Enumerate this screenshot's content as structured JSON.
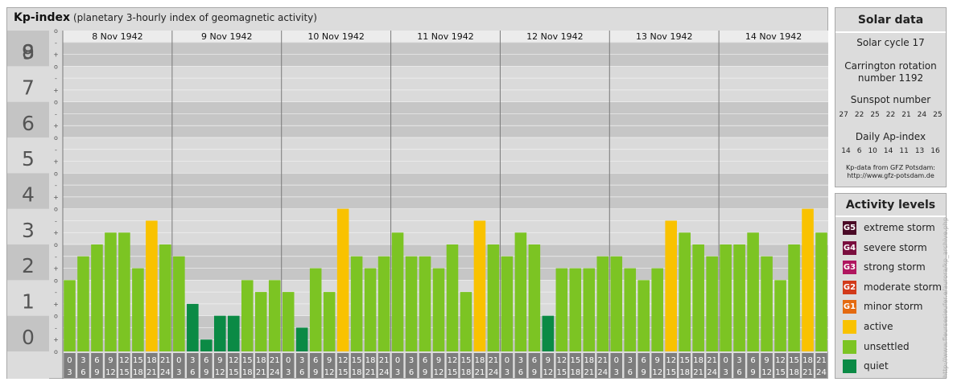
{
  "header": {
    "title": "Kp-index",
    "subtitle": "(planetary 3-hourly index of geomagnetic activity)"
  },
  "chart_data": {
    "type": "bar",
    "title": "Kp-index",
    "subtitle": "(planetary 3-hourly index of geomagnetic activity)",
    "ylim": [
      0,
      9
    ],
    "yticks": [
      "0",
      "1",
      "2",
      "3",
      "4",
      "5",
      "6",
      "7",
      "8",
      "9"
    ],
    "subticks": [
      "o",
      "+",
      "-",
      "o"
    ],
    "days": [
      "8 Nov 1942",
      "9 Nov 1942",
      "10 Nov 1942",
      "11 Nov 1942",
      "12 Nov 1942",
      "13 Nov 1942",
      "14 Nov 1942"
    ],
    "interval_top": [
      "0",
      "3",
      "6",
      "9",
      "12",
      "15",
      "18",
      "21"
    ],
    "interval_bottom": [
      "3",
      "6",
      "9",
      "12",
      "15",
      "18",
      "21",
      "24"
    ],
    "values": [
      [
        2.0,
        2.667,
        3.0,
        3.333,
        3.333,
        2.333,
        3.667,
        3.0
      ],
      [
        2.667,
        1.333,
        0.333,
        1.0,
        1.0,
        2.0,
        1.667,
        2.0
      ],
      [
        1.667,
        0.667,
        2.333,
        1.667,
        4.0,
        2.667,
        2.333,
        2.667
      ],
      [
        3.333,
        2.667,
        2.667,
        2.333,
        3.0,
        1.667,
        3.667,
        3.0
      ],
      [
        2.667,
        3.333,
        3.0,
        1.0,
        2.333,
        2.333,
        2.333,
        2.667
      ],
      [
        2.667,
        2.333,
        2.0,
        2.333,
        3.667,
        3.333,
        3.0,
        2.667
      ],
      [
        3.0,
        3.0,
        3.333,
        2.667,
        2.0,
        3.0,
        4.0,
        3.333
      ]
    ],
    "categories_colors": {
      "quiet": "#0b8a45",
      "unsettled": "#7cc423",
      "active": "#f9c200"
    },
    "grid": true
  },
  "solar": {
    "title": "Solar data",
    "cycle": "Solar cycle 17",
    "carrington_line1": "Carrington rotation",
    "carrington_line2": "number 1192",
    "sunspot_title": "Sunspot number",
    "sunspot_values": [
      "27",
      "22",
      "25",
      "22",
      "21",
      "24",
      "25"
    ],
    "ap_title": "Daily Ap-index",
    "ap_values": [
      "14",
      "6",
      "10",
      "14",
      "11",
      "13",
      "16"
    ],
    "source_line1": "Kp-data from GFZ Potsdam:",
    "source_line2": "http://www.gfz-potsdam.de"
  },
  "activity": {
    "title": "Activity levels",
    "items": [
      {
        "badge": "G5",
        "label": "extreme storm",
        "color": "#4a0a26"
      },
      {
        "badge": "G4",
        "label": "severe storm",
        "color": "#7a0e3e"
      },
      {
        "badge": "G3",
        "label": "strong storm",
        "color": "#b0165f"
      },
      {
        "badge": "G2",
        "label": "moderate storm",
        "color": "#d23a1a"
      },
      {
        "badge": "G1",
        "label": "minor storm",
        "color": "#e46a10"
      },
      {
        "badge": "",
        "label": "active",
        "color": "#f9c200"
      },
      {
        "badge": "",
        "label": "unsettled",
        "color": "#7cc423"
      },
      {
        "badge": "",
        "label": "quiet",
        "color": "#0b8a45"
      }
    ]
  },
  "watermark": "http://www.fleursesieufer.e/aurora/kp_archive.php"
}
